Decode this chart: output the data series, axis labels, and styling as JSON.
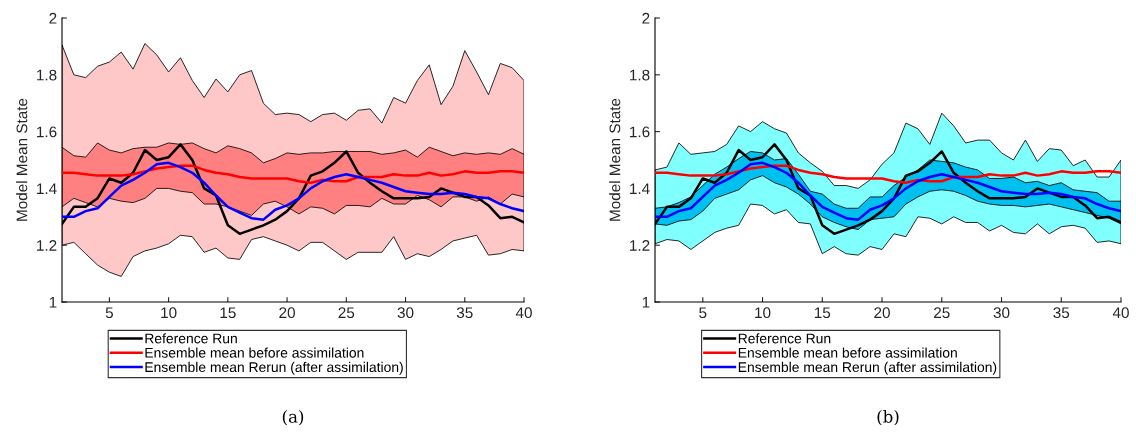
{
  "chart_data": [
    {
      "type": "line",
      "ylabel": "Model Mean State",
      "xlim": [
        1,
        40
      ],
      "xticks": [
        5,
        10,
        15,
        20,
        25,
        30,
        35,
        40
      ],
      "ylim": [
        1,
        2
      ],
      "yticks": [
        1,
        1.2,
        1.4,
        1.6,
        1.8,
        2
      ],
      "legend": "bottom",
      "annotations": [
        "(a)"
      ],
      "x": [
        1,
        2,
        3,
        4,
        5,
        6,
        7,
        8,
        9,
        10,
        11,
        12,
        13,
        14,
        15,
        16,
        17,
        18,
        19,
        20,
        21,
        22,
        23,
        24,
        25,
        26,
        27,
        28,
        29,
        30,
        31,
        32,
        33,
        34,
        35,
        36,
        37,
        38,
        39,
        40
      ],
      "series": [
        {
          "type": "area",
          "color": "#ffc8c8",
          "values": [
            null,
            null,
            null,
            null,
            null,
            null,
            null,
            null,
            null,
            null,
            null,
            null,
            null,
            null,
            null,
            null,
            null,
            null,
            null,
            null,
            null,
            null,
            null,
            null,
            null,
            null,
            null,
            null,
            null,
            null,
            null,
            null,
            null,
            null,
            null,
            null,
            null,
            null,
            null,
            null
          ],
          "lower": [
            1.2,
            1.21,
            1.17,
            1.13,
            1.105,
            1.09,
            1.16,
            1.18,
            1.19,
            1.205,
            1.235,
            1.23,
            1.175,
            1.19,
            1.155,
            1.15,
            1.22,
            1.23,
            1.215,
            1.2,
            1.18,
            1.21,
            1.21,
            1.18,
            1.15,
            1.175,
            1.175,
            1.175,
            1.23,
            1.15,
            1.17,
            1.16,
            1.185,
            1.215,
            1.225,
            1.235,
            1.165,
            1.17,
            1.185,
            1.18
          ],
          "upper": [
            1.905,
            1.8,
            1.79,
            1.83,
            1.845,
            1.88,
            1.82,
            1.91,
            1.87,
            1.81,
            1.86,
            1.78,
            1.72,
            1.785,
            1.74,
            1.8,
            1.815,
            1.7,
            1.66,
            1.665,
            1.66,
            1.635,
            1.66,
            1.665,
            1.64,
            1.675,
            1.68,
            1.63,
            1.72,
            1.7,
            1.78,
            1.835,
            1.695,
            1.76,
            1.885,
            1.81,
            1.73,
            1.84,
            1.825,
            1.78
          ]
        },
        {
          "type": "area",
          "color": "#ff8080",
          "values": [
            null,
            null,
            null,
            null,
            null,
            null,
            null,
            null,
            null,
            null,
            null,
            null,
            null,
            null,
            null,
            null,
            null,
            null,
            null,
            null,
            null,
            null,
            null,
            null,
            null,
            null,
            null,
            null,
            null,
            null,
            null,
            null,
            null,
            null,
            null,
            null,
            null,
            null,
            null,
            null
          ],
          "lower": [
            1.335,
            1.365,
            1.35,
            1.335,
            1.365,
            1.355,
            1.35,
            1.365,
            1.4,
            1.4,
            1.39,
            1.385,
            1.345,
            1.345,
            1.335,
            1.32,
            1.305,
            1.345,
            1.355,
            1.335,
            1.31,
            1.335,
            1.33,
            1.31,
            1.34,
            1.34,
            1.335,
            1.365,
            1.345,
            1.345,
            1.375,
            1.36,
            1.335,
            1.37,
            1.37,
            1.355,
            1.37,
            1.345,
            1.38,
            1.37
          ],
          "upper": [
            1.545,
            1.515,
            1.51,
            1.56,
            1.535,
            1.525,
            1.54,
            1.545,
            1.545,
            1.56,
            1.555,
            1.56,
            1.54,
            1.525,
            1.55,
            1.54,
            1.525,
            1.49,
            1.505,
            1.525,
            1.52,
            1.525,
            1.525,
            1.53,
            1.53,
            1.53,
            1.53,
            1.52,
            1.525,
            1.535,
            1.51,
            1.545,
            1.53,
            1.515,
            1.525,
            1.52,
            1.525,
            1.52,
            1.54,
            1.52
          ]
        },
        {
          "name": "Reference Run",
          "color": "#000000",
          "values": [
            1.275,
            1.335,
            1.335,
            1.365,
            1.435,
            1.42,
            1.455,
            1.535,
            1.5,
            1.51,
            1.555,
            1.5,
            1.4,
            1.375,
            1.27,
            1.24,
            1.255,
            1.27,
            1.29,
            1.32,
            1.365,
            1.445,
            1.46,
            1.49,
            1.53,
            1.455,
            1.42,
            1.39,
            1.365,
            1.365,
            1.365,
            1.37,
            1.4,
            1.385,
            1.37,
            1.37,
            1.34,
            1.295,
            1.3,
            1.28
          ]
        },
        {
          "name": "Ensemble mean before assimilation",
          "color": "#ff0000",
          "values": [
            1.455,
            1.455,
            1.45,
            1.445,
            1.445,
            1.445,
            1.45,
            1.46,
            1.47,
            1.475,
            1.48,
            1.48,
            1.465,
            1.455,
            1.45,
            1.44,
            1.435,
            1.435,
            1.435,
            1.435,
            1.425,
            1.42,
            1.43,
            1.425,
            1.425,
            1.44,
            1.44,
            1.44,
            1.45,
            1.445,
            1.445,
            1.455,
            1.445,
            1.45,
            1.46,
            1.455,
            1.455,
            1.46,
            1.46,
            1.455
          ]
        },
        {
          "name": "Ensemble mean Rerun (after assimilation)",
          "color": "#0000ff",
          "values": [
            1.3,
            1.3,
            1.32,
            1.33,
            1.37,
            1.41,
            1.43,
            1.455,
            1.485,
            1.49,
            1.475,
            1.455,
            1.42,
            1.375,
            1.335,
            1.315,
            1.295,
            1.29,
            1.325,
            1.34,
            1.365,
            1.4,
            1.425,
            1.44,
            1.45,
            1.44,
            1.43,
            1.42,
            1.405,
            1.39,
            1.385,
            1.38,
            1.38,
            1.385,
            1.38,
            1.37,
            1.365,
            1.345,
            1.33,
            1.32
          ]
        }
      ]
    },
    {
      "type": "line",
      "ylabel": "Model Mean State",
      "xlim": [
        1,
        40
      ],
      "xticks": [
        5,
        10,
        15,
        20,
        25,
        30,
        35,
        40
      ],
      "ylim": [
        1,
        2
      ],
      "yticks": [
        1,
        1.2,
        1.4,
        1.6,
        1.8,
        2
      ],
      "legend": "bottom",
      "annotations": [
        "(b)"
      ],
      "x": [
        1,
        2,
        3,
        4,
        5,
        6,
        7,
        8,
        9,
        10,
        11,
        12,
        13,
        14,
        15,
        16,
        17,
        18,
        19,
        20,
        21,
        22,
        23,
        24,
        25,
        26,
        27,
        28,
        29,
        30,
        31,
        32,
        33,
        34,
        35,
        36,
        37,
        38,
        39,
        40
      ],
      "series": [
        {
          "type": "area",
          "color": "#80ffff",
          "values": [
            null,
            null,
            null,
            null,
            null,
            null,
            null,
            null,
            null,
            null,
            null,
            null,
            null,
            null,
            null,
            null,
            null,
            null,
            null,
            null,
            null,
            null,
            null,
            null,
            null,
            null,
            null,
            null,
            null,
            null,
            null,
            null,
            null,
            null,
            null,
            null,
            null,
            null,
            null,
            null
          ],
          "lower": [
            1.205,
            1.22,
            1.215,
            1.185,
            1.215,
            1.245,
            1.26,
            1.27,
            1.345,
            1.34,
            1.31,
            1.325,
            1.28,
            1.275,
            1.17,
            1.195,
            1.17,
            1.165,
            1.195,
            1.185,
            1.24,
            1.23,
            1.3,
            1.295,
            1.275,
            1.3,
            1.28,
            1.28,
            1.25,
            1.27,
            1.245,
            1.24,
            1.275,
            1.24,
            1.265,
            1.27,
            1.26,
            1.21,
            1.215,
            1.205
          ],
          "upper": [
            1.465,
            1.475,
            1.56,
            1.52,
            1.525,
            1.53,
            1.555,
            1.62,
            1.6,
            1.635,
            1.61,
            1.595,
            1.525,
            1.49,
            1.46,
            1.41,
            1.41,
            1.4,
            1.43,
            1.485,
            1.525,
            1.63,
            1.61,
            1.555,
            1.665,
            1.62,
            1.56,
            1.57,
            1.57,
            1.525,
            1.5,
            1.57,
            1.495,
            1.54,
            1.535,
            1.48,
            1.5,
            1.44,
            1.44,
            1.5
          ]
        },
        {
          "type": "area",
          "color": "#00c0f0",
          "values": [
            null,
            null,
            null,
            null,
            null,
            null,
            null,
            null,
            null,
            null,
            null,
            null,
            null,
            null,
            null,
            null,
            null,
            null,
            null,
            null,
            null,
            null,
            null,
            null,
            null,
            null,
            null,
            null,
            null,
            null,
            null,
            null,
            null,
            null,
            null,
            null,
            null,
            null,
            null,
            null
          ],
          "lower": [
            1.275,
            1.27,
            1.285,
            1.29,
            1.32,
            1.365,
            1.38,
            1.395,
            1.43,
            1.445,
            1.42,
            1.405,
            1.38,
            1.345,
            1.3,
            1.28,
            1.265,
            1.255,
            1.29,
            1.295,
            1.3,
            1.345,
            1.37,
            1.39,
            1.395,
            1.39,
            1.375,
            1.355,
            1.345,
            1.34,
            1.34,
            1.335,
            1.34,
            1.345,
            1.335,
            1.325,
            1.315,
            1.305,
            1.295,
            1.275
          ],
          "upper": [
            1.33,
            1.335,
            1.35,
            1.37,
            1.41,
            1.45,
            1.475,
            1.505,
            1.53,
            1.525,
            1.5,
            1.505,
            1.45,
            1.39,
            1.38,
            1.345,
            1.33,
            1.33,
            1.37,
            1.37,
            1.41,
            1.44,
            1.465,
            1.5,
            1.495,
            1.49,
            1.475,
            1.465,
            1.435,
            1.435,
            1.44,
            1.42,
            1.425,
            1.41,
            1.42,
            1.395,
            1.39,
            1.385,
            1.355,
            1.355
          ]
        },
        {
          "name": "Reference Run",
          "color": "#000000",
          "values": [
            1.275,
            1.335,
            1.335,
            1.365,
            1.435,
            1.42,
            1.455,
            1.535,
            1.5,
            1.51,
            1.555,
            1.5,
            1.4,
            1.375,
            1.27,
            1.24,
            1.255,
            1.27,
            1.29,
            1.32,
            1.365,
            1.445,
            1.46,
            1.49,
            1.53,
            1.455,
            1.42,
            1.39,
            1.365,
            1.365,
            1.365,
            1.37,
            1.4,
            1.385,
            1.37,
            1.37,
            1.34,
            1.295,
            1.3,
            1.28
          ]
        },
        {
          "name": "Ensemble mean before assimilation",
          "color": "#ff0000",
          "values": [
            1.455,
            1.455,
            1.45,
            1.445,
            1.445,
            1.445,
            1.45,
            1.46,
            1.47,
            1.475,
            1.48,
            1.48,
            1.465,
            1.455,
            1.45,
            1.44,
            1.435,
            1.435,
            1.435,
            1.435,
            1.425,
            1.42,
            1.43,
            1.425,
            1.425,
            1.44,
            1.44,
            1.44,
            1.45,
            1.445,
            1.445,
            1.455,
            1.445,
            1.45,
            1.46,
            1.455,
            1.455,
            1.46,
            1.46,
            1.455
          ]
        },
        {
          "name": "Ensemble mean Rerun (after assimilation)",
          "color": "#0000ff",
          "values": [
            1.3,
            1.3,
            1.32,
            1.33,
            1.37,
            1.41,
            1.43,
            1.455,
            1.485,
            1.49,
            1.475,
            1.455,
            1.42,
            1.375,
            1.335,
            1.315,
            1.295,
            1.29,
            1.325,
            1.34,
            1.365,
            1.4,
            1.425,
            1.44,
            1.45,
            1.44,
            1.43,
            1.42,
            1.405,
            1.39,
            1.385,
            1.38,
            1.38,
            1.385,
            1.38,
            1.37,
            1.365,
            1.345,
            1.33,
            1.32
          ]
        }
      ]
    }
  ]
}
